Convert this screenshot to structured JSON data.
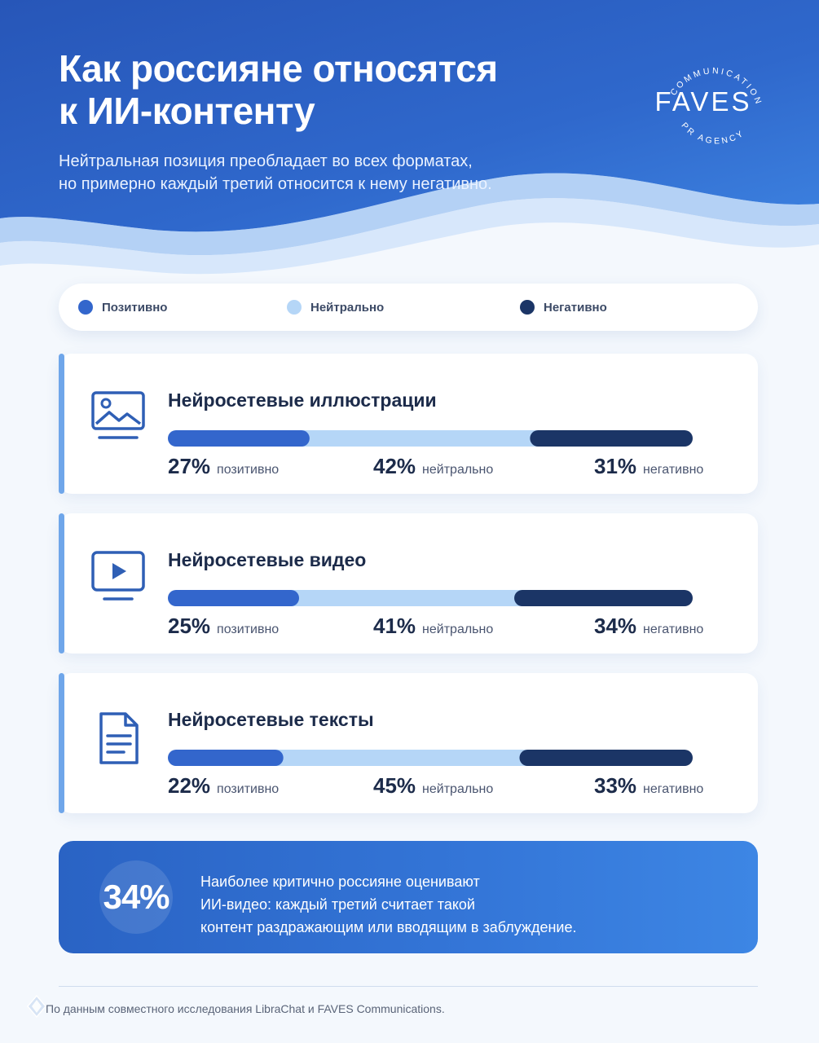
{
  "header": {
    "title_lines": [
      "Как россияне относятся",
      "к ИИ-контенту"
    ],
    "subtitle_lines": [
      "Нейтральная позиция преобладает во всех форматах,",
      "но примерно каждый третий относится к нему негативно."
    ]
  },
  "logo": {
    "word": "FAVES",
    "arc_top": "COMMUNICATIONS",
    "arc_bottom": "PR AGENCY"
  },
  "legend": [
    {
      "label": "Позитивно",
      "color": "#3366cc"
    },
    {
      "label": "Нейтрально",
      "color": "#b5d6f7"
    },
    {
      "label": "Негативно",
      "color": "#1b3566"
    }
  ],
  "chart_data": {
    "type": "bar",
    "orientation": "horizontal",
    "stacked": true,
    "normalized": "percent",
    "title": "Как россияне относятся к ИИ-контенту",
    "categories": [
      "Нейросетевые иллюстрации",
      "Нейросетевые видео",
      "Нейросетевые тексты"
    ],
    "series": [
      {
        "name": "Позитивно",
        "values": [
          27,
          25,
          22
        ],
        "color": "#3366cc",
        "label": "позитивно"
      },
      {
        "name": "Нейтрально",
        "values": [
          42,
          41,
          45
        ],
        "color": "#b5d6f7",
        "label": "нейтрально"
      },
      {
        "name": "Негативно",
        "values": [
          31,
          34,
          33
        ],
        "color": "#1b3566",
        "label": "негативно"
      }
    ],
    "value_suffix": "%",
    "legend_position": "top",
    "grid": false
  },
  "cards": [
    {
      "icon": "image-icon"
    },
    {
      "icon": "video-play-icon"
    },
    {
      "icon": "document-icon"
    }
  ],
  "callout": {
    "number": "34%",
    "text_lines": [
      "Наиболее критично россияне оценивают",
      "ИИ-видео: каждый третий считает такой",
      "контент раздражающим или вводящим в заблуждение."
    ]
  },
  "footer": {
    "text": "По данным совместного исследования LibraChat и FAVES Communications."
  }
}
